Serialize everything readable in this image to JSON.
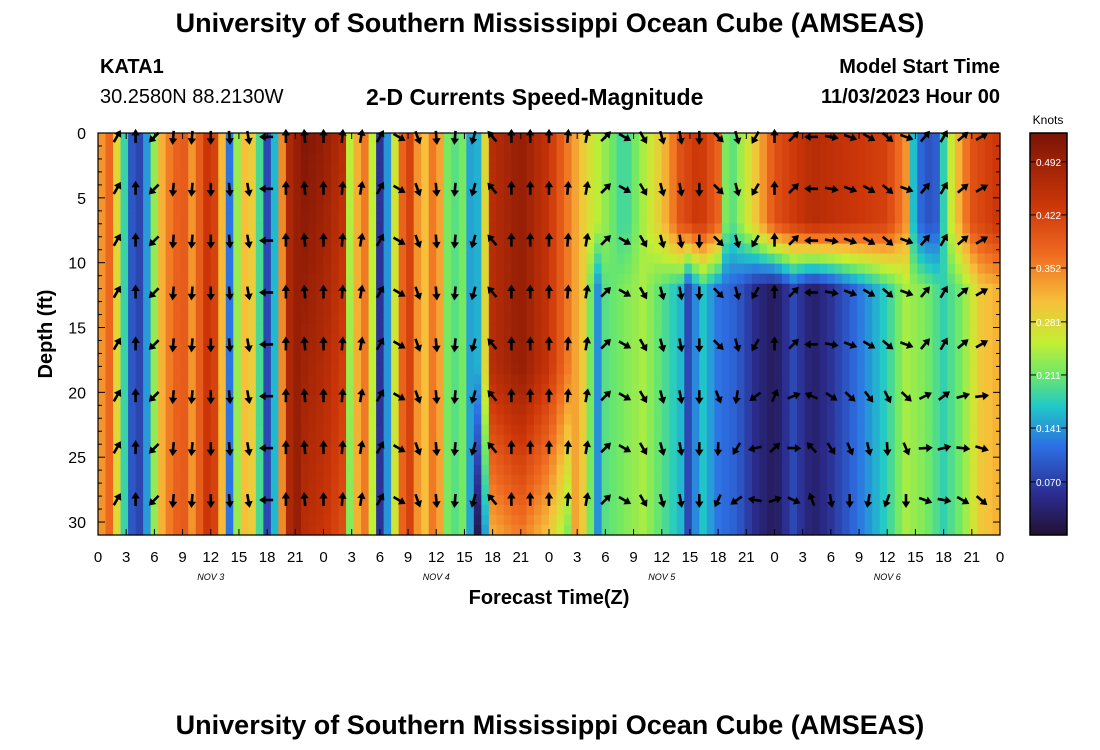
{
  "header": {
    "title": "University of Southern Mississippi Ocean Cube (AMSEAS)",
    "station": "KATA1",
    "location": "30.2580N  88.2130W",
    "plot_title": "2-D Currents Speed-Magnitude",
    "model_start_label": "Model Start Time",
    "model_start_value": "11/03/2023 Hour 00"
  },
  "footer": {
    "title": "University of Southern Mississippi Ocean Cube (AMSEAS)"
  },
  "chart_data": {
    "type": "heatmap",
    "title": "2-D Currents Speed-Magnitude",
    "xlabel": "Forecast Time(Z)",
    "ylabel": "Depth (ft)",
    "x_hours_range": [
      0,
      96
    ],
    "y_depth_range": [
      0,
      31
    ],
    "x_tick_labels": [
      "0",
      "3",
      "6",
      "9",
      "12",
      "15",
      "18",
      "21",
      "0",
      "3",
      "6",
      "9",
      "12",
      "15",
      "18",
      "21",
      "0",
      "3",
      "6",
      "9",
      "12",
      "15",
      "18",
      "21",
      "0",
      "3",
      "6",
      "9",
      "12",
      "15",
      "18",
      "21",
      "0"
    ],
    "y_ticks": [
      0,
      5,
      10,
      15,
      20,
      25,
      30
    ],
    "day_labels": [
      {
        "label": "NOV 3",
        "hour": 12
      },
      {
        "label": "NOV 4",
        "hour": 36
      },
      {
        "label": "NOV 5",
        "hour": 60
      },
      {
        "label": "NOV 6",
        "hour": 84
      }
    ],
    "colorbar": {
      "unit": "Knots",
      "min": 0.0,
      "max": 0.53,
      "tick_labels": [
        "0.492",
        "0.422",
        "0.352",
        "0.281",
        "0.211",
        "0.141",
        "0.070"
      ]
    },
    "speed_profile_knots_by_hour": [
      {
        "hour": 0,
        "speed": 0.3
      },
      {
        "hour": 1,
        "speed": 0.4
      },
      {
        "hour": 2,
        "speed": 0.28
      },
      {
        "hour": 3,
        "speed": 0.16
      },
      {
        "hour": 4,
        "speed": 0.05
      },
      {
        "hour": 5,
        "speed": 0.12
      },
      {
        "hour": 6,
        "speed": 0.23
      },
      {
        "hour": 7,
        "speed": 0.34
      },
      {
        "hour": 9,
        "speed": 0.4
      },
      {
        "hour": 10,
        "speed": 0.34
      },
      {
        "hour": 11,
        "speed": 0.4
      },
      {
        "hour": 12,
        "speed": 0.46
      },
      {
        "hour": 13,
        "speed": 0.36
      },
      {
        "hour": 14,
        "speed": 0.12
      },
      {
        "hour": 15,
        "speed": 0.26
      },
      {
        "hour": 16,
        "speed": 0.34
      },
      {
        "hour": 17,
        "speed": 0.22
      },
      {
        "hour": 18,
        "speed": 0.08
      },
      {
        "hour": 19,
        "speed": 0.18
      },
      {
        "hour": 20,
        "speed": 0.46
      },
      {
        "hour": 22,
        "speed": 0.52
      },
      {
        "hour": 24,
        "speed": 0.5
      },
      {
        "hour": 26,
        "speed": 0.46
      },
      {
        "hour": 27,
        "speed": 0.2
      },
      {
        "hour": 28,
        "speed": 0.4
      },
      {
        "hour": 29,
        "speed": 0.3
      },
      {
        "hour": 30,
        "speed": 0.06
      },
      {
        "hour": 31,
        "speed": 0.16
      },
      {
        "hour": 32,
        "speed": 0.34
      },
      {
        "hour": 33,
        "speed": 0.44
      },
      {
        "hour": 34,
        "speed": 0.34
      },
      {
        "hour": 35,
        "speed": 0.3
      },
      {
        "hour": 36,
        "speed": 0.4
      },
      {
        "hour": 37,
        "speed": 0.22
      },
      {
        "hour": 38,
        "speed": 0.2
      },
      {
        "hour": 39,
        "speed": 0.22
      },
      {
        "hour": 40,
        "speed": 0.1
      },
      {
        "hour": 41,
        "speed": 0.24
      },
      {
        "hour": 42,
        "speed": 0.46
      },
      {
        "hour": 45,
        "speed": 0.5
      },
      {
        "hour": 48,
        "speed": 0.44
      },
      {
        "hour": 50,
        "speed": 0.36
      },
      {
        "hour": 52,
        "speed": 0.28
      },
      {
        "hour": 53,
        "speed": 0.12
      },
      {
        "hour": 54,
        "speed": 0.2
      },
      {
        "hour": 56,
        "speed": 0.22
      },
      {
        "hour": 58,
        "speed": 0.24
      },
      {
        "hour": 60,
        "speed": 0.2
      },
      {
        "hour": 62,
        "speed": 0.16
      },
      {
        "hour": 63,
        "speed": 0.06
      },
      {
        "hour": 64,
        "speed": 0.18
      },
      {
        "hour": 66,
        "speed": 0.12
      },
      {
        "hour": 68,
        "speed": 0.1
      },
      {
        "hour": 70,
        "speed": 0.05
      },
      {
        "hour": 72,
        "speed": 0.02
      },
      {
        "hour": 74,
        "speed": 0.08
      },
      {
        "hour": 76,
        "speed": 0.03
      },
      {
        "hour": 78,
        "speed": 0.06
      },
      {
        "hour": 80,
        "speed": 0.1
      },
      {
        "hour": 82,
        "speed": 0.14
      },
      {
        "hour": 84,
        "speed": 0.18
      },
      {
        "hour": 86,
        "speed": 0.24
      },
      {
        "hour": 88,
        "speed": 0.22
      },
      {
        "hour": 90,
        "speed": 0.18
      },
      {
        "hour": 92,
        "speed": 0.22
      },
      {
        "hour": 94,
        "speed": 0.3
      },
      {
        "hour": 96,
        "speed": 0.32
      }
    ],
    "upper_layer_knots": [
      {
        "hour": 52,
        "speed": 0.28
      },
      {
        "hour": 56,
        "speed": 0.18
      },
      {
        "hour": 58,
        "speed": 0.24
      },
      {
        "hour": 60,
        "speed": 0.3
      },
      {
        "hour": 62,
        "speed": 0.4
      },
      {
        "hour": 64,
        "speed": 0.44
      },
      {
        "hour": 66,
        "speed": 0.38
      },
      {
        "hour": 67,
        "speed": 0.18
      },
      {
        "hour": 70,
        "speed": 0.3
      },
      {
        "hour": 72,
        "speed": 0.4
      },
      {
        "hour": 76,
        "speed": 0.46
      },
      {
        "hour": 80,
        "speed": 0.44
      },
      {
        "hour": 84,
        "speed": 0.42
      },
      {
        "hour": 86,
        "speed": 0.34
      },
      {
        "hour": 87,
        "speed": 0.12
      },
      {
        "hour": 89,
        "speed": 0.08
      },
      {
        "hour": 91,
        "speed": 0.28
      },
      {
        "hour": 93,
        "speed": 0.4
      },
      {
        "hour": 96,
        "speed": 0.44
      }
    ],
    "vector_rows_depth_ft": [
      0,
      4,
      8,
      12,
      16,
      20,
      24,
      28
    ],
    "vector_direction_deg_by_hour": [
      {
        "hour": 0,
        "dir": 90
      },
      {
        "hour": 2,
        "dir": 30
      },
      {
        "hour": 4,
        "dir": 0
      },
      {
        "hour": 6,
        "dir": 225
      },
      {
        "hour": 8,
        "dir": 185
      },
      {
        "hour": 10,
        "dir": 185
      },
      {
        "hour": 12,
        "dir": 180
      },
      {
        "hour": 14,
        "dir": 175
      },
      {
        "hour": 16,
        "dir": 170
      },
      {
        "hour": 18,
        "dir": 270
      },
      {
        "hour": 20,
        "dir": 0
      },
      {
        "hour": 22,
        "dir": 355
      },
      {
        "hour": 24,
        "dir": 0
      },
      {
        "hour": 26,
        "dir": 5
      },
      {
        "hour": 28,
        "dir": 10
      },
      {
        "hour": 30,
        "dir": 30
      },
      {
        "hour": 32,
        "dir": 120
      },
      {
        "hour": 34,
        "dir": 160
      },
      {
        "hour": 36,
        "dir": 175
      },
      {
        "hour": 38,
        "dir": 185
      },
      {
        "hour": 40,
        "dir": 195
      },
      {
        "hour": 42,
        "dir": 320
      },
      {
        "hour": 44,
        "dir": 0
      },
      {
        "hour": 46,
        "dir": 0
      },
      {
        "hour": 48,
        "dir": 0
      },
      {
        "hour": 50,
        "dir": 5
      },
      {
        "hour": 52,
        "dir": 10
      },
      {
        "hour": 54,
        "dir": 45
      },
      {
        "hour": 56,
        "dir": 120
      },
      {
        "hour": 58,
        "dir": 150
      },
      {
        "hour": 60,
        "dir": 165
      },
      {
        "hour": 62,
        "dir": 170
      },
      {
        "hour": 64,
        "dir": 180
      },
      {
        "hour": 66,
        "dir": 135
      },
      {
        "hour": 68,
        "dir": 165
      },
      {
        "hour": 70,
        "dir": 210
      },
      {
        "hour": 72,
        "dir": 0
      },
      {
        "hour": 74,
        "dir": 45
      },
      {
        "hour": 76,
        "dir": 270
      },
      {
        "hour": 78,
        "dir": 100
      },
      {
        "hour": 80,
        "dir": 110
      },
      {
        "hour": 82,
        "dir": 120
      },
      {
        "hour": 84,
        "dir": 130
      },
      {
        "hour": 86,
        "dir": 110
      },
      {
        "hour": 88,
        "dir": 40
      },
      {
        "hour": 90,
        "dir": 30
      },
      {
        "hour": 92,
        "dir": 50
      },
      {
        "hour": 94,
        "dir": 60
      },
      {
        "hour": 96,
        "dir": 80
      }
    ]
  }
}
